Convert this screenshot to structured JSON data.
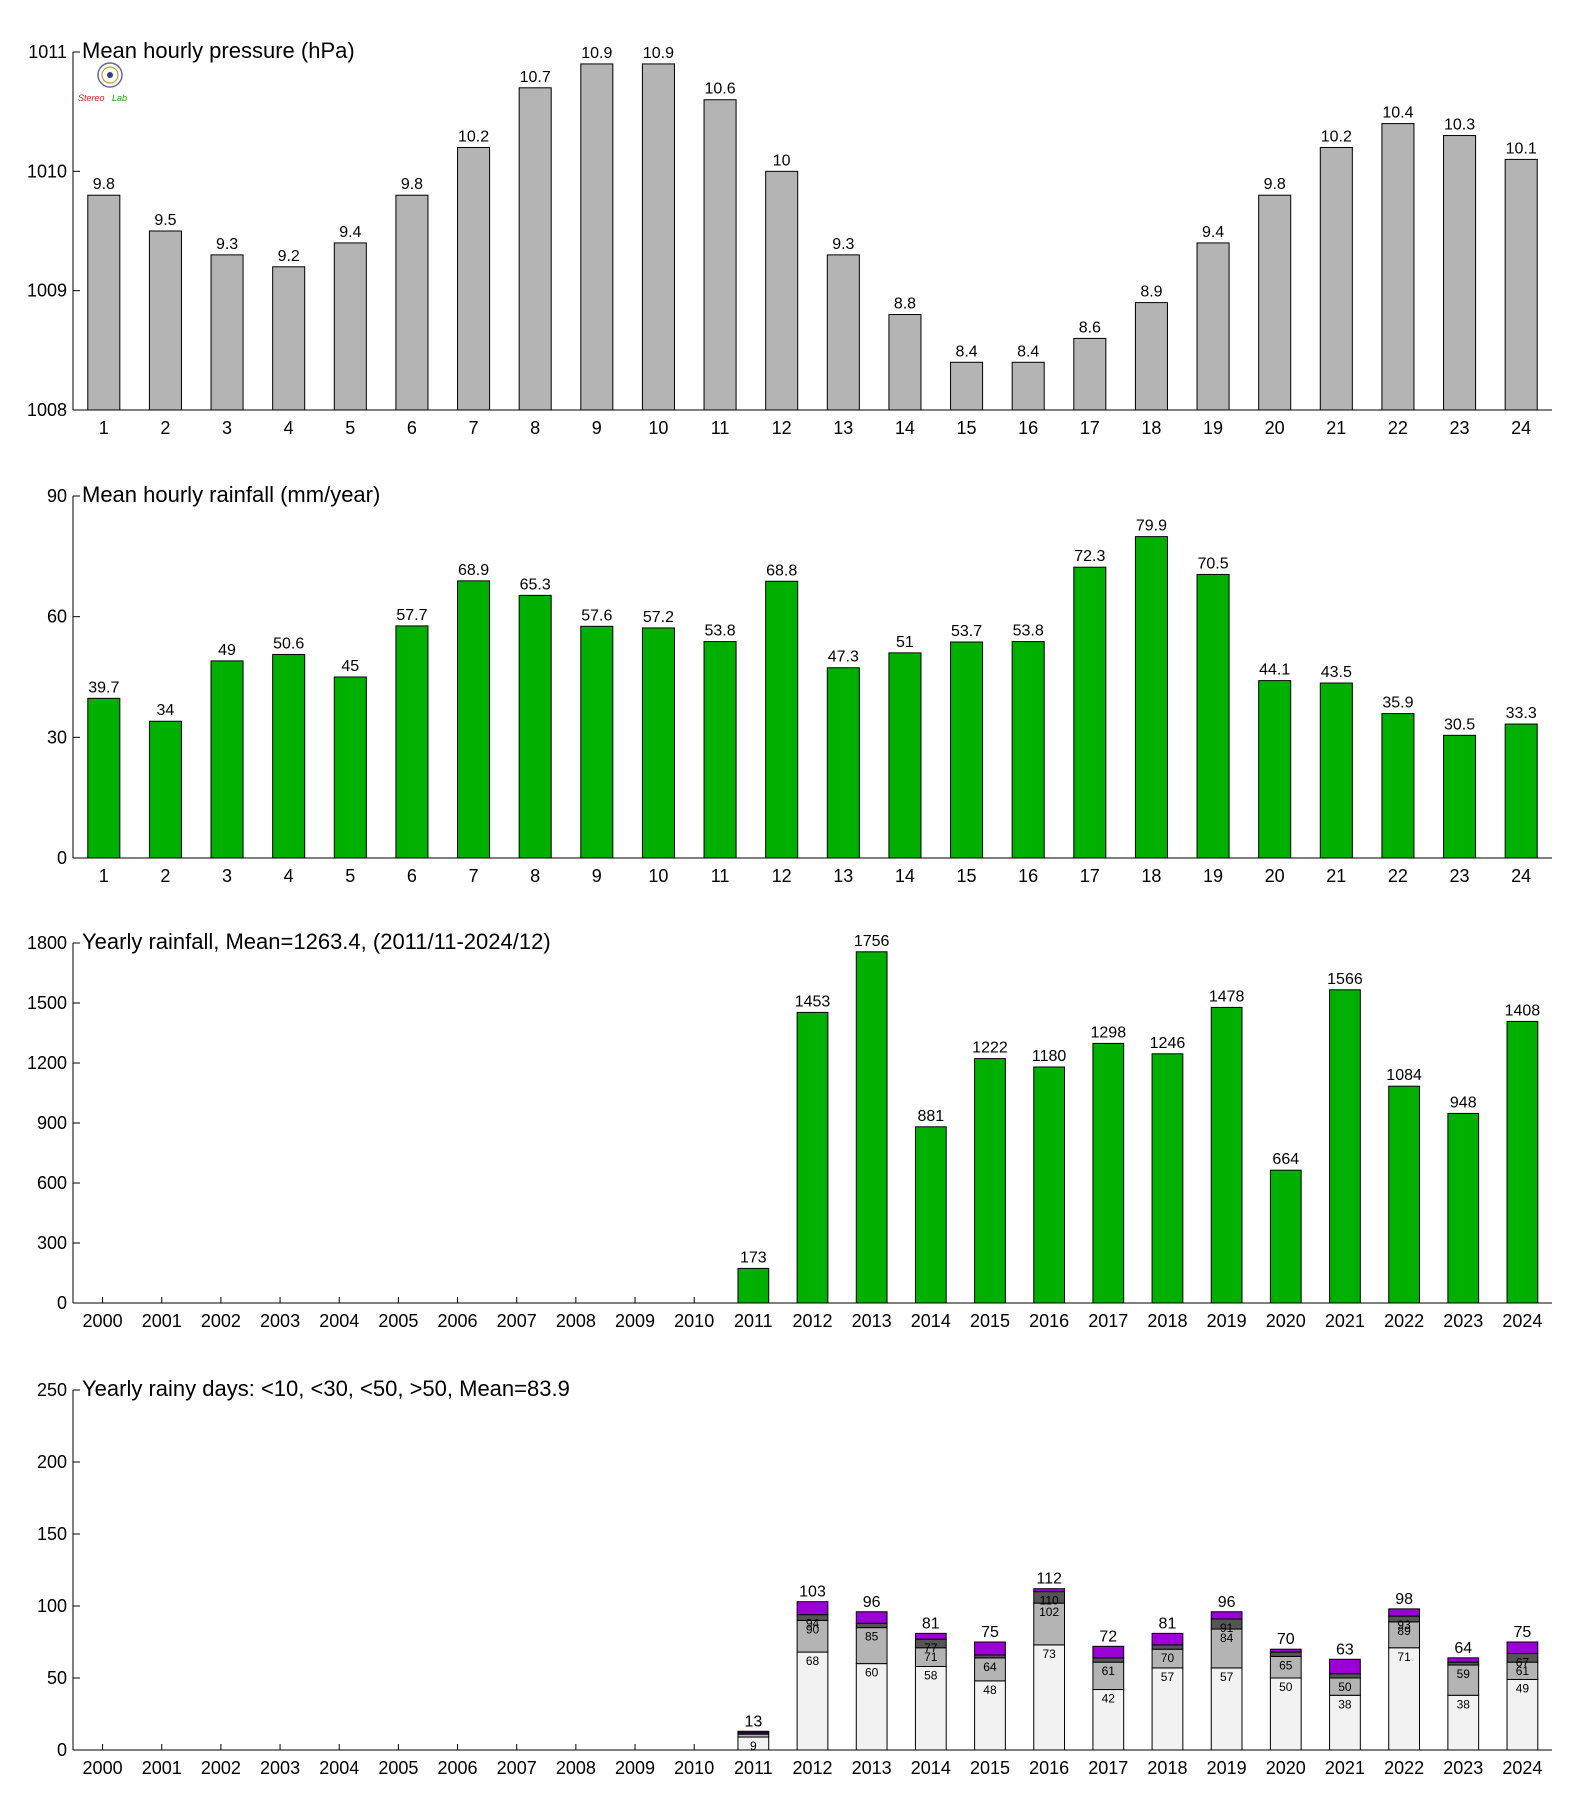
{
  "logo": {
    "left": "Stereo",
    "right": "Lab"
  },
  "chart_data": [
    {
      "type": "bar",
      "title": "Mean hourly pressure (hPa)",
      "categories": [
        "1",
        "2",
        "3",
        "4",
        "5",
        "6",
        "7",
        "8",
        "9",
        "10",
        "11",
        "12",
        "13",
        "14",
        "15",
        "16",
        "17",
        "18",
        "19",
        "20",
        "21",
        "22",
        "23",
        "24"
      ],
      "values": [
        1009.8,
        1009.5,
        1009.3,
        1009.2,
        1009.4,
        1009.8,
        1010.2,
        1010.7,
        1010.9,
        1010.9,
        1010.6,
        1010.0,
        1009.3,
        1008.8,
        1008.4,
        1008.4,
        1008.6,
        1008.9,
        1009.4,
        1009.8,
        1010.2,
        1010.4,
        1010.3,
        1010.1
      ],
      "labels": [
        "9.8",
        "9.5",
        "9.3",
        "9.2",
        "9.4",
        "9.8",
        "10.2",
        "10.7",
        "10.9",
        "10.9",
        "10.6",
        "10",
        "9.3",
        "8.8",
        "8.4",
        "8.4",
        "8.6",
        "8.9",
        "9.4",
        "9.8",
        "10.2",
        "10.4",
        "10.3",
        "10.1"
      ],
      "ylim": [
        1008,
        1011
      ],
      "yticks": [
        1008,
        1009,
        1010,
        1011
      ],
      "color": "#b4b4b4"
    },
    {
      "type": "bar",
      "title": "Mean hourly rainfall (mm/year)",
      "categories": [
        "1",
        "2",
        "3",
        "4",
        "5",
        "6",
        "7",
        "8",
        "9",
        "10",
        "11",
        "12",
        "13",
        "14",
        "15",
        "16",
        "17",
        "18",
        "19",
        "20",
        "21",
        "22",
        "23",
        "24"
      ],
      "values": [
        39.7,
        34,
        49,
        50.6,
        45,
        57.7,
        68.9,
        65.3,
        57.6,
        57.2,
        53.8,
        68.8,
        47.3,
        51,
        53.7,
        53.8,
        72.3,
        79.9,
        70.5,
        44.1,
        43.5,
        35.9,
        30.5,
        33.3
      ],
      "labels": [
        "39.7",
        "34",
        "49",
        "50.6",
        "45",
        "57.7",
        "68.9",
        "65.3",
        "57.6",
        "57.2",
        "53.8",
        "68.8",
        "47.3",
        "51",
        "53.7",
        "53.8",
        "72.3",
        "79.9",
        "70.5",
        "44.1",
        "43.5",
        "35.9",
        "30.5",
        "33.3"
      ],
      "ylim": [
        0,
        90
      ],
      "yticks": [
        0,
        30,
        60,
        90
      ],
      "color": "#00b000"
    },
    {
      "type": "bar",
      "title": "Yearly rainfall, Mean=1263.4, (2011/11-2024/12)",
      "categories": [
        "2000",
        "2001",
        "2002",
        "2003",
        "2004",
        "2005",
        "2006",
        "2007",
        "2008",
        "2009",
        "2010",
        "2011",
        "2012",
        "2013",
        "2014",
        "2015",
        "2016",
        "2017",
        "2018",
        "2019",
        "2020",
        "2021",
        "2022",
        "2023",
        "2024"
      ],
      "values": [
        null,
        null,
        null,
        null,
        null,
        null,
        null,
        null,
        null,
        null,
        null,
        173,
        1453,
        1756,
        881,
        1222,
        1180,
        1298,
        1246,
        1478,
        664,
        1566,
        1084,
        948,
        1408
      ],
      "labels": [
        "",
        "",
        "",
        "",
        "",
        "",
        "",
        "",
        "",
        "",
        "",
        "173",
        "1453",
        "1756",
        "881",
        "1222",
        "1180",
        "1298",
        "1246",
        "1478",
        "664",
        "1566",
        "1084",
        "948",
        "1408"
      ],
      "ylim": [
        0,
        1800
      ],
      "yticks": [
        0,
        300,
        600,
        900,
        1200,
        1500,
        1800
      ],
      "color": "#00b000"
    },
    {
      "type": "bar",
      "stacked": true,
      "title": "Yearly rainy days: <10, <30, <50, >50, Mean=83.9",
      "categories": [
        "2000",
        "2001",
        "2002",
        "2003",
        "2004",
        "2005",
        "2006",
        "2007",
        "2008",
        "2009",
        "2010",
        "2011",
        "2012",
        "2013",
        "2014",
        "2015",
        "2016",
        "2017",
        "2018",
        "2019",
        "2020",
        "2021",
        "2022",
        "2023",
        "2024"
      ],
      "cumulative": {
        "lt10": [
          null,
          null,
          null,
          null,
          null,
          null,
          null,
          null,
          null,
          null,
          null,
          9,
          68,
          60,
          58,
          48,
          73,
          42,
          57,
          57,
          50,
          38,
          71,
          38,
          49
        ],
        "lt30": [
          null,
          null,
          null,
          null,
          null,
          null,
          null,
          null,
          null,
          null,
          null,
          11,
          90,
          85,
          71,
          64,
          102,
          61,
          70,
          84,
          65,
          50,
          89,
          59,
          61
        ],
        "lt50": [
          null,
          null,
          null,
          null,
          null,
          null,
          null,
          null,
          null,
          null,
          null,
          12,
          94,
          88,
          77,
          66,
          110,
          64,
          73,
          91,
          68,
          53,
          93,
          61,
          67
        ],
        "total": [
          null,
          null,
          null,
          null,
          null,
          null,
          null,
          null,
          null,
          null,
          null,
          13,
          103,
          96,
          81,
          75,
          112,
          72,
          81,
          96,
          70,
          63,
          98,
          64,
          75
        ]
      },
      "ylim": [
        0,
        250
      ],
      "yticks": [
        0,
        50,
        100,
        150,
        200,
        250
      ],
      "colors": {
        "lt10": "#f2f2f2",
        "lt30": "#b4b4b4",
        "lt50": "#555555",
        "gt50": "#9b00d6"
      }
    }
  ]
}
